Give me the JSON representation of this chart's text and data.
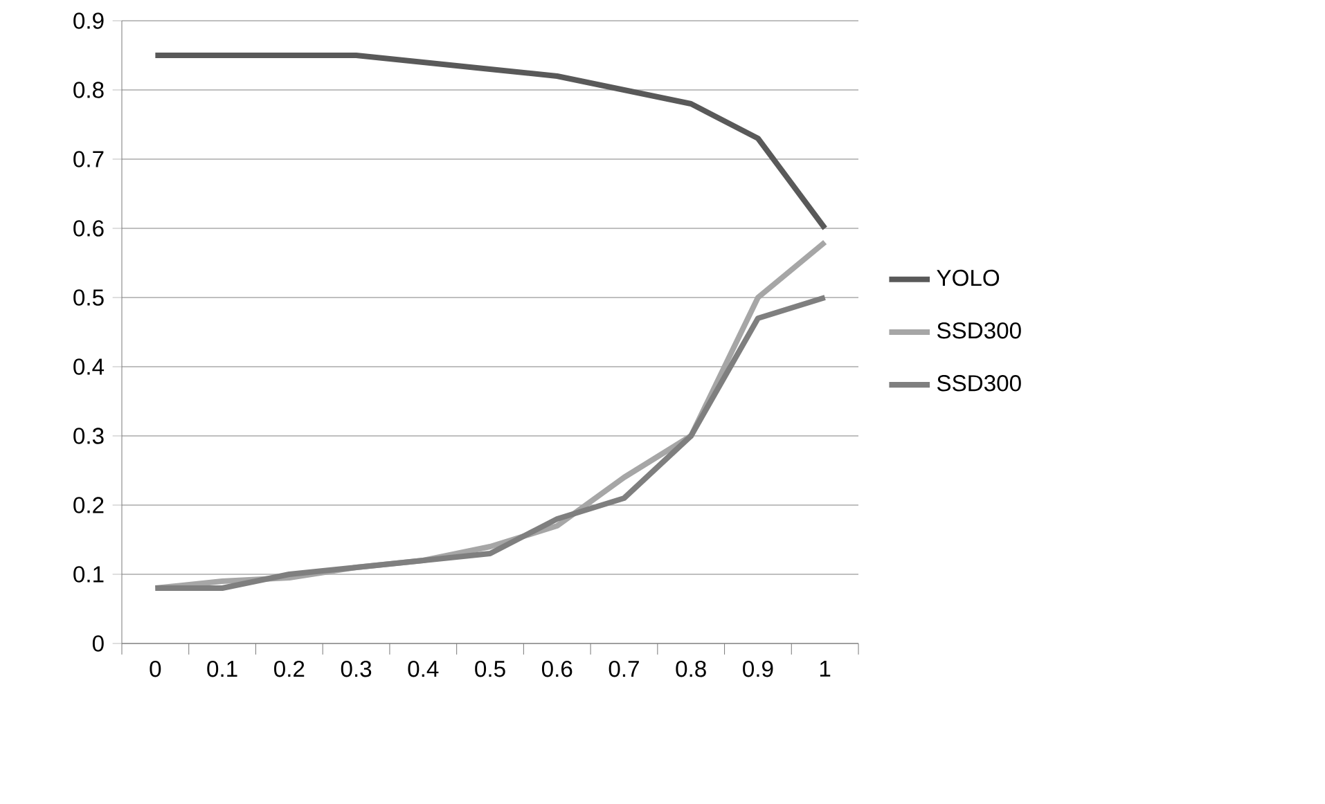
{
  "chart_data": {
    "type": "line",
    "categories": [
      "0",
      "0.1",
      "0.2",
      "0.3",
      "0.4",
      "0.5",
      "0.6",
      "0.7",
      "0.8",
      "0.9",
      "1"
    ],
    "series": [
      {
        "name": "YOLO",
        "color": "#595959",
        "values": [
          0.85,
          0.85,
          0.85,
          0.85,
          0.84,
          0.83,
          0.82,
          0.8,
          0.78,
          0.73,
          0.6
        ]
      },
      {
        "name": "SSD300",
        "color": "#a6a6a6",
        "values": [
          0.08,
          0.09,
          0.095,
          0.11,
          0.12,
          0.14,
          0.17,
          0.24,
          0.3,
          0.5,
          0.58
        ]
      },
      {
        "name": "SSD300",
        "color": "#7f7f7f",
        "values": [
          0.08,
          0.08,
          0.1,
          0.11,
          0.12,
          0.13,
          0.18,
          0.21,
          0.3,
          0.47,
          0.5
        ]
      }
    ],
    "ylim": [
      0,
      0.9
    ],
    "yticks": [
      0,
      0.1,
      0.2,
      0.3,
      0.4,
      0.5,
      0.6,
      0.7,
      0.8,
      0.9
    ],
    "grid": "y",
    "legend": "right",
    "marker": "none",
    "line_style": "solid"
  }
}
